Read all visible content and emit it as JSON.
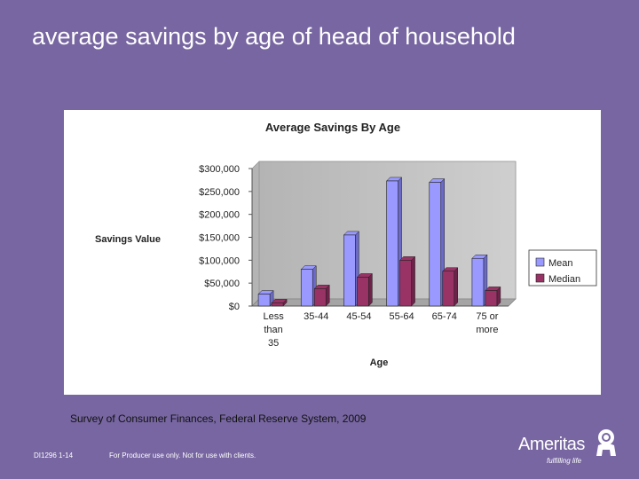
{
  "slide": {
    "title": "average savings by age of head of household",
    "source": "Survey of Consumer Finances, Federal Reserve System, 2009",
    "footer_code": "DI1296 1-14",
    "footer_disclaimer": "For Producer use only. Not for use with clients.",
    "logo_text": "Ameritas",
    "logo_tagline": "fulfilling life"
  },
  "chart_data": {
    "type": "bar",
    "title": "Average Savings By Age",
    "xlabel": "Age",
    "ylabel": "Savings Value",
    "categories": [
      [
        "Less",
        "than",
        "35"
      ],
      [
        "35-44"
      ],
      [
        "45-54"
      ],
      [
        "55-64"
      ],
      [
        "65-74"
      ],
      [
        "75 or",
        "more"
      ]
    ],
    "series": [
      {
        "name": "Mean",
        "color": "#9999ff",
        "values": [
          26000,
          80000,
          155000,
          273000,
          270000,
          104000
        ]
      },
      {
        "name": "Median",
        "color": "#993366",
        "values": [
          7000,
          38000,
          63000,
          100000,
          76000,
          34000
        ]
      }
    ],
    "ylim": [
      0,
      300000
    ],
    "yticks": [
      "$0",
      "$50,000",
      "$100,000",
      "$150,000",
      "$200,000",
      "$250,000",
      "$300,000"
    ],
    "grid": false,
    "legend_position": "right"
  }
}
